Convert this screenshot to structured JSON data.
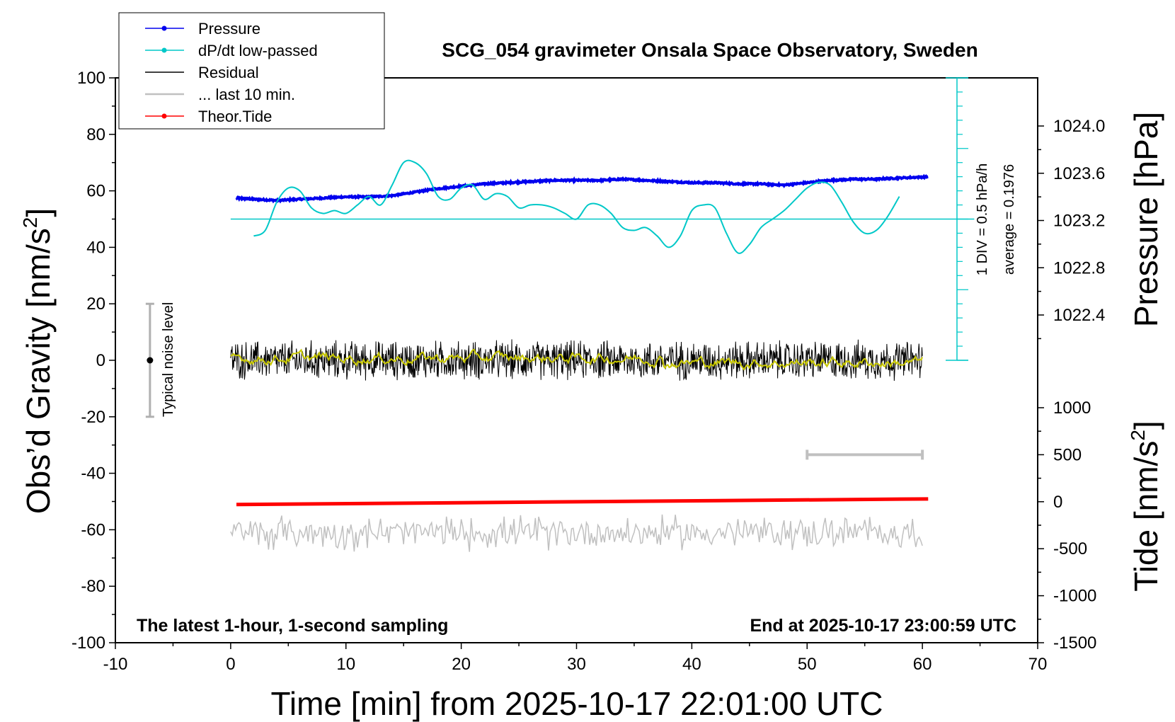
{
  "chart_data": {
    "type": "line",
    "title": "SCG_054 gravimeter Onsala Space Observatory, Sweden",
    "xlabel": "Time [min] from 2025-10-17 22:01:00 UTC",
    "ylabel_left": "Obs’d Gravity [nm/s",
    "ylabel_left_sup": "2",
    "ylabel_left_close": "]",
    "ylabel_right_pressure": "Pressure [hPa]",
    "ylabel_right_tide": "Tide [nm/s",
    "ylabel_right_tide_sup": "2",
    "ylabel_right_tide_close": "]",
    "xlim": [
      -10,
      70
    ],
    "ylim": [
      -100,
      100
    ],
    "pressure_lim": [
      1022.0,
      1024.0
    ],
    "tide_lim": [
      -1500,
      1000
    ],
    "x_ticks": [
      "-10",
      "0",
      "10",
      "20",
      "30",
      "40",
      "50",
      "60",
      "70"
    ],
    "y_ticks": [
      "-100",
      "-80",
      "-60",
      "-40",
      "-20",
      "0",
      "20",
      "40",
      "60",
      "80",
      "100"
    ],
    "pressure_ticks": [
      "1022.4",
      "1022.8",
      "1023.2",
      "1023.6",
      "1024.0"
    ],
    "tide_ticks": [
      "-1500",
      "-1000",
      "-500",
      "0",
      "500",
      "1000"
    ],
    "footer_left": "The latest 1-hour, 1-second sampling",
    "footer_right": "End at 2025-10-17 23:00:59 UTC",
    "noise_label": "Typical noise level",
    "div_label": "1 DIV = 0.5 hPa/h",
    "average_label": "average = 0.1976",
    "legend": [
      {
        "name": "Pressure",
        "color": "#0000ee",
        "marker": true
      },
      {
        "name": "dP/dt low-passed",
        "color": "#00c8c8",
        "marker": true
      },
      {
        "name": "Residual",
        "color": "#000000",
        "marker": false
      },
      {
        "name": "... last 10 min.",
        "color": "#c0c0c0",
        "marker": false
      },
      {
        "name": "Theor.Tide",
        "color": "#ff0000",
        "marker": true
      }
    ],
    "series": [
      {
        "name": "Pressure",
        "color": "#0000ee",
        "axis": "pressure",
        "x": [
          0.5,
          2,
          4,
          6,
          8,
          10,
          12,
          14,
          16,
          18,
          20,
          22,
          24,
          26,
          28,
          30,
          32,
          34,
          36,
          38,
          40,
          42,
          44,
          46,
          48,
          50,
          52,
          54,
          56,
          58,
          60.5
        ],
        "values": [
          1023.39,
          1023.38,
          1023.37,
          1023.38,
          1023.39,
          1023.4,
          1023.4,
          1023.41,
          1023.44,
          1023.47,
          1023.49,
          1023.51,
          1023.52,
          1023.53,
          1023.54,
          1023.54,
          1023.54,
          1023.55,
          1023.54,
          1023.53,
          1023.52,
          1023.52,
          1023.51,
          1023.51,
          1023.5,
          1023.52,
          1023.54,
          1023.55,
          1023.55,
          1023.56,
          1023.57
        ]
      },
      {
        "name": "dP/dt low-passed",
        "color": "#00c8c8",
        "axis": "gravity",
        "x": [
          2,
          3,
          4,
          5,
          6,
          7,
          8,
          9,
          10,
          11,
          12,
          13,
          14,
          15,
          16,
          17,
          18,
          19,
          20,
          21,
          22,
          23,
          24,
          25,
          26,
          27,
          28,
          29,
          30,
          31,
          32,
          33,
          34,
          35,
          36,
          37,
          38,
          39,
          40,
          41,
          42,
          43,
          44,
          45,
          46,
          47,
          48,
          49,
          50,
          51,
          52,
          53,
          54,
          55,
          56,
          57,
          58
        ],
        "values": [
          44,
          46,
          56,
          61,
          60,
          54,
          52,
          53,
          52,
          55,
          58,
          55,
          62,
          70,
          70,
          66,
          58,
          57,
          61,
          62,
          57,
          59,
          58,
          54,
          55,
          55,
          54,
          52,
          50,
          55,
          55,
          52,
          47,
          46,
          47,
          44,
          40,
          44,
          53,
          55,
          54,
          45,
          38,
          41,
          47,
          50,
          53,
          57,
          61,
          63,
          62,
          56,
          49,
          45,
          46,
          51,
          58
        ]
      },
      {
        "name": "Residual",
        "color": "#000000",
        "axis": "gravity",
        "x_range": [
          0,
          60
        ],
        "center": 0,
        "amplitude": 8
      },
      {
        "name": "Residual smoothed",
        "color": "#c8c800",
        "axis": "gravity",
        "x_range": [
          0,
          60
        ],
        "center": 0,
        "amplitude": 1.2
      },
      {
        "name": "... last 10 min.",
        "color": "#c0c0c0",
        "axis": "gravity",
        "x_range": [
          0,
          60
        ],
        "center": -61,
        "amplitude": 7
      },
      {
        "name": "Theor.Tide",
        "color": "#ff0000",
        "axis": "tide",
        "x": [
          0.5,
          60.5
        ],
        "values": [
          -30,
          30
        ]
      }
    ],
    "dpdt_zero_line": 50,
    "noise_bar": {
      "x": -7,
      "y_low": -20,
      "y_high": 20
    },
    "gray_bar": {
      "x_start": 50,
      "x_end": 60
    },
    "grid": false
  }
}
